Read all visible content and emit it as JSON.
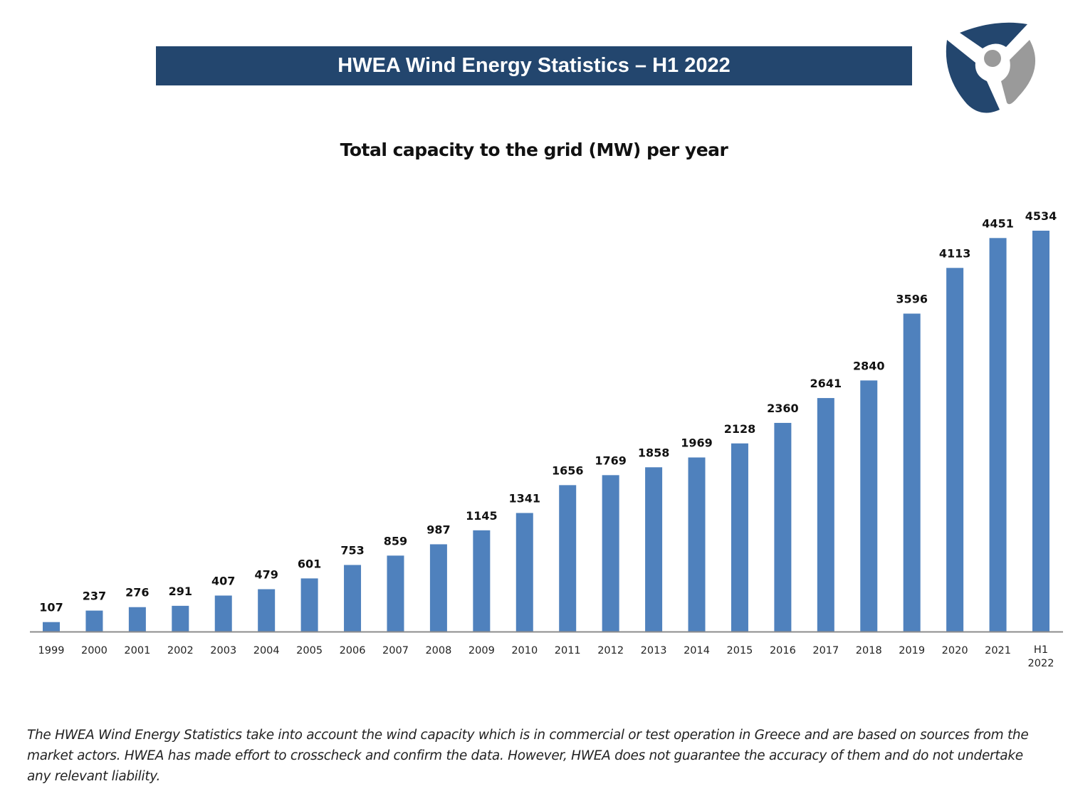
{
  "header": {
    "title": "HWEA Wind Energy Statistics – H1 2022"
  },
  "logo": {
    "name": "HWEA turbine logo",
    "colors": {
      "blue": "#23466e",
      "grey": "#9a9a9a"
    }
  },
  "chart_data": {
    "type": "bar",
    "title": "Total capacity to the grid (MW) per year",
    "categories": [
      "1999",
      "2000",
      "2001",
      "2002",
      "2003",
      "2004",
      "2005",
      "2006",
      "2007",
      "2008",
      "2009",
      "2010",
      "2011",
      "2012",
      "2013",
      "2014",
      "2015",
      "2016",
      "2017",
      "2018",
      "2019",
      "2020",
      "2021",
      "H1 2022"
    ],
    "values": [
      107,
      237,
      276,
      291,
      407,
      479,
      601,
      753,
      859,
      987,
      1145,
      1341,
      1656,
      1769,
      1858,
      1969,
      2128,
      2360,
      2641,
      2840,
      3596,
      4113,
      4451,
      4534
    ],
    "ylim": [
      0,
      4534
    ],
    "grid": false,
    "data_labels": true,
    "bar_color": "#4f81bd"
  },
  "footnote": "The HWEA Wind Energy Statistics take into account the wind capacity which is in commercial or test operation in Greece and are based on sources from the market actors. HWEA has made effort to crosscheck and confirm the data. However, HWEA does not guarantee the accuracy of them and do not undertake any relevant liability."
}
